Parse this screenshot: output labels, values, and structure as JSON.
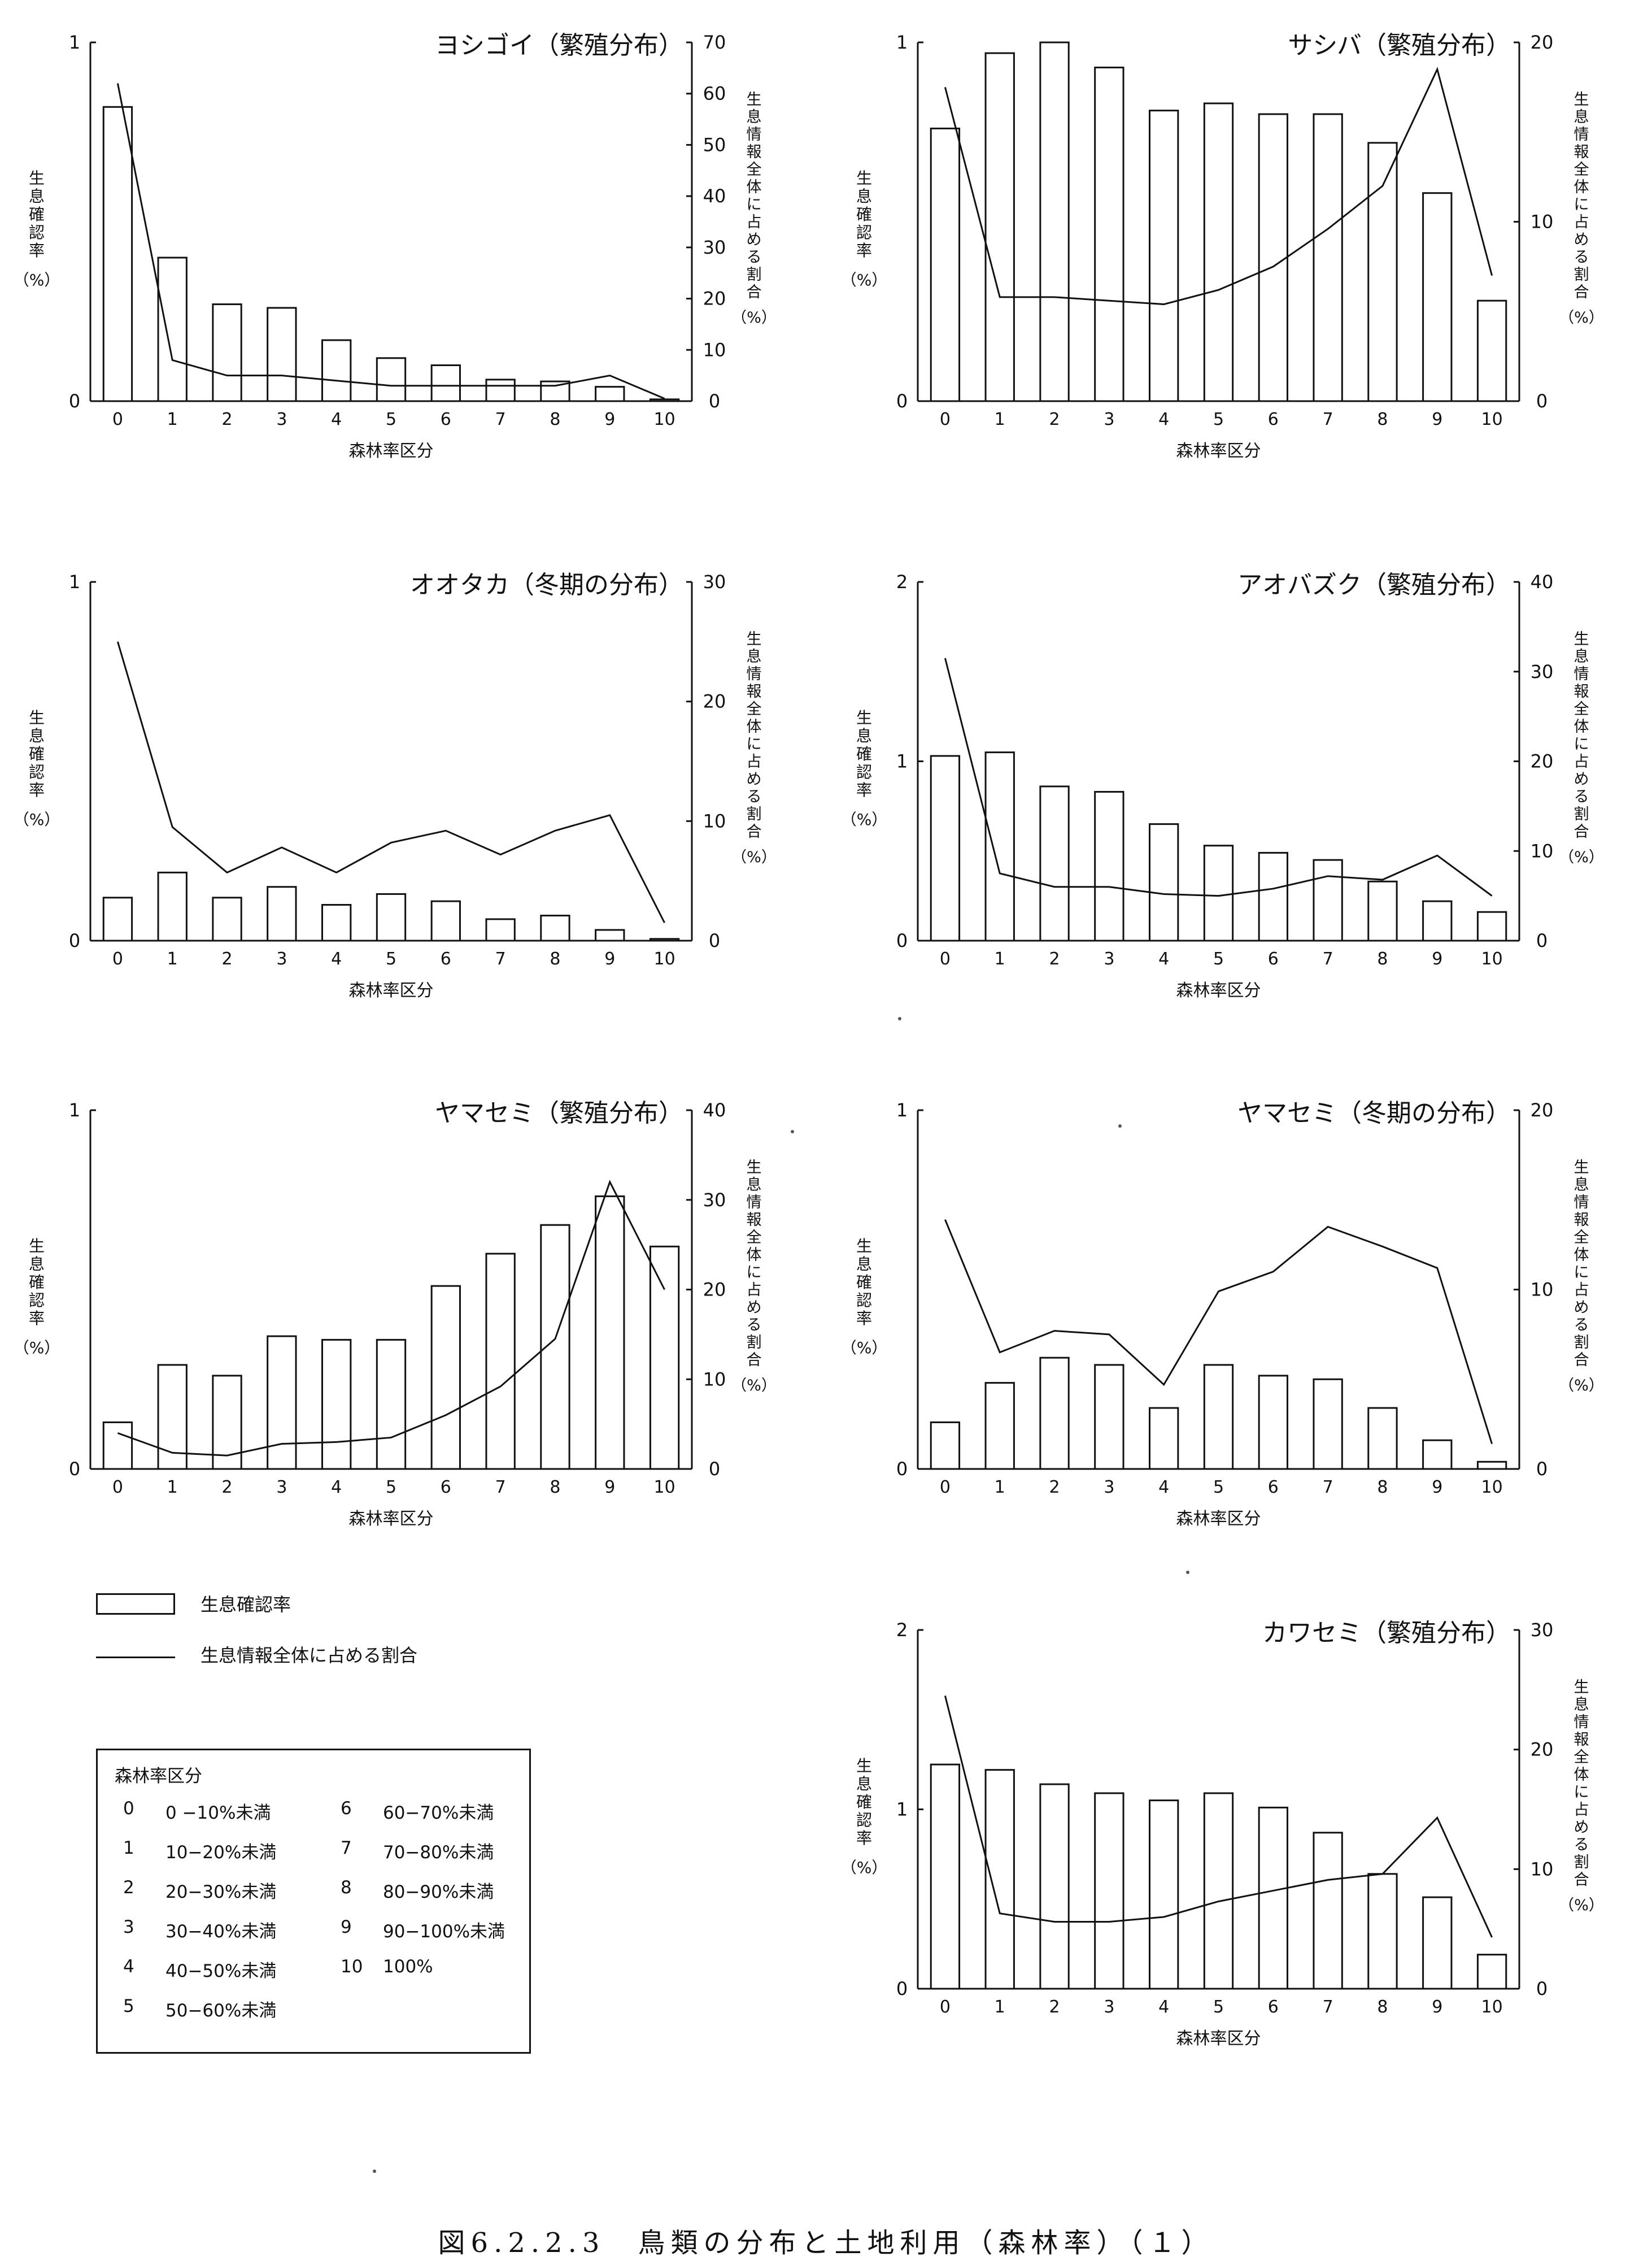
{
  "legend": {
    "bar_label": "生息確認率",
    "line_label": "生息情報全体に占める割合"
  },
  "key": {
    "title": "森林率区分",
    "items": [
      {
        "code": "0",
        "range": "0 −10%未満"
      },
      {
        "code": "1",
        "range": "10−20%未満"
      },
      {
        "code": "2",
        "range": "20−30%未満"
      },
      {
        "code": "3",
        "range": "30−40%未満"
      },
      {
        "code": "4",
        "range": "40−50%未満"
      },
      {
        "code": "5",
        "range": "50−60%未満"
      },
      {
        "code": "6",
        "range": "60−70%未満"
      },
      {
        "code": "7",
        "range": "70−80%未満"
      },
      {
        "code": "8",
        "range": "80−90%未満"
      },
      {
        "code": "9",
        "range": "90−100%未満"
      },
      {
        "code": "10",
        "range": "100%"
      }
    ]
  },
  "caption": "図6.2.2.3　鳥類の分布と土地利用（森林率）（１）",
  "chart_data": [
    {
      "type": "bar",
      "title": "ヨシゴイ（繁殖分布）",
      "xlabel": "森林率区分",
      "ylabel": "生息確認率（%）",
      "y2label": "生息情報全体に占める割合（%）",
      "categories": [
        "0",
        "1",
        "2",
        "3",
        "4",
        "5",
        "6",
        "7",
        "8",
        "9",
        "10"
      ],
      "ylim": [
        0,
        1
      ],
      "yticks": [
        "0",
        "1"
      ],
      "y2lim": [
        0,
        70
      ],
      "y2ticks": [
        "0",
        "10",
        "20",
        "30",
        "40",
        "50",
        "60",
        "70"
      ],
      "series": [
        {
          "name": "生息確認率",
          "kind": "bar",
          "values": [
            0.82,
            0.4,
            0.27,
            0.26,
            0.17,
            0.12,
            0.1,
            0.06,
            0.055,
            0.04,
            0.005
          ]
        },
        {
          "name": "生息情報全体に占める割合",
          "kind": "line",
          "values": [
            62,
            8,
            5,
            5,
            4,
            3,
            3,
            3,
            3,
            5,
            0.5
          ]
        }
      ]
    },
    {
      "type": "bar",
      "title": "サシバ（繁殖分布）",
      "xlabel": "森林率区分",
      "ylabel": "生息確認率（%）",
      "y2label": "生息情報全体に占める割合（%）",
      "categories": [
        "0",
        "1",
        "2",
        "3",
        "4",
        "5",
        "6",
        "7",
        "8",
        "9",
        "10"
      ],
      "ylim": [
        0,
        1
      ],
      "yticks": [
        "0",
        "1"
      ],
      "y2lim": [
        0,
        20
      ],
      "y2ticks": [
        "0",
        "10",
        "20"
      ],
      "series": [
        {
          "name": "生息確認率",
          "kind": "bar",
          "values": [
            0.76,
            0.97,
            1.0,
            0.93,
            0.81,
            0.83,
            0.8,
            0.8,
            0.72,
            0.58,
            0.28
          ]
        },
        {
          "name": "生息情報全体に占める割合",
          "kind": "line",
          "values": [
            17.5,
            5.8,
            5.8,
            5.6,
            5.4,
            6.2,
            7.5,
            9.6,
            12,
            18.5,
            7
          ]
        }
      ]
    },
    {
      "type": "bar",
      "title": "オオタカ（冬期の分布）",
      "xlabel": "森林率区分",
      "ylabel": "生息確認率（%）",
      "y2label": "生息情報全体に占める割合（%）",
      "categories": [
        "0",
        "1",
        "2",
        "3",
        "4",
        "5",
        "6",
        "7",
        "8",
        "9",
        "10"
      ],
      "ylim": [
        0,
        1
      ],
      "yticks": [
        "0",
        "1"
      ],
      "y2lim": [
        0,
        30
      ],
      "y2ticks": [
        "0",
        "10",
        "20",
        "30"
      ],
      "series": [
        {
          "name": "生息確認率",
          "kind": "bar",
          "values": [
            0.12,
            0.19,
            0.12,
            0.15,
            0.1,
            0.13,
            0.11,
            0.06,
            0.07,
            0.03,
            0.005
          ]
        },
        {
          "name": "生息情報全体に占める割合",
          "kind": "line",
          "values": [
            25,
            9.5,
            5.7,
            7.8,
            5.7,
            8.2,
            9.2,
            7.2,
            9.2,
            10.5,
            1.5
          ]
        }
      ]
    },
    {
      "type": "bar",
      "title": "アオバズク（繁殖分布）",
      "xlabel": "森林率区分",
      "ylabel": "生息確認率（%）",
      "y2label": "生息情報全体に占める割合（%）",
      "categories": [
        "0",
        "1",
        "2",
        "3",
        "4",
        "5",
        "6",
        "7",
        "8",
        "9",
        "10"
      ],
      "ylim": [
        0,
        2
      ],
      "yticks": [
        "0",
        "1",
        "2"
      ],
      "y2lim": [
        0,
        40
      ],
      "y2ticks": [
        "0",
        "10",
        "20",
        "30",
        "40"
      ],
      "series": [
        {
          "name": "生息確認率",
          "kind": "bar",
          "values": [
            1.03,
            1.05,
            0.86,
            0.83,
            0.65,
            0.53,
            0.49,
            0.45,
            0.33,
            0.22,
            0.16
          ]
        },
        {
          "name": "生息情報全体に占める割合",
          "kind": "line",
          "values": [
            31.5,
            7.5,
            6,
            6,
            5.2,
            5,
            5.8,
            7.2,
            6.8,
            9.5,
            5
          ]
        }
      ]
    },
    {
      "type": "bar",
      "title": "ヤマセミ（繁殖分布）",
      "xlabel": "森林率区分",
      "ylabel": "生息確認率（%）",
      "y2label": "生息情報全体に占める割合（%）",
      "categories": [
        "0",
        "1",
        "2",
        "3",
        "4",
        "5",
        "6",
        "7",
        "8",
        "9",
        "10"
      ],
      "ylim": [
        0,
        1
      ],
      "yticks": [
        "0",
        "1"
      ],
      "y2lim": [
        0,
        40
      ],
      "y2ticks": [
        "0",
        "10",
        "20",
        "30",
        "40"
      ],
      "series": [
        {
          "name": "生息確認率",
          "kind": "bar",
          "values": [
            0.13,
            0.29,
            0.26,
            0.37,
            0.36,
            0.36,
            0.51,
            0.6,
            0.68,
            0.76,
            0.62
          ]
        },
        {
          "name": "生息情報全体に占める割合",
          "kind": "line",
          "values": [
            4,
            1.8,
            1.5,
            2.8,
            3,
            3.5,
            6,
            9.2,
            14.5,
            32,
            20
          ]
        }
      ]
    },
    {
      "type": "bar",
      "title": "ヤマセミ（冬期の分布）",
      "xlabel": "森林率区分",
      "ylabel": "生息確認率（%）",
      "y2label": "生息情報全体に占める割合（%）",
      "categories": [
        "0",
        "1",
        "2",
        "3",
        "4",
        "5",
        "6",
        "7",
        "8",
        "9",
        "10"
      ],
      "ylim": [
        0,
        1
      ],
      "yticks": [
        "0",
        "1"
      ],
      "y2lim": [
        0,
        20
      ],
      "y2ticks": [
        "0",
        "10",
        "20"
      ],
      "series": [
        {
          "name": "生息確認率",
          "kind": "bar",
          "values": [
            0.13,
            0.24,
            0.31,
            0.29,
            0.17,
            0.29,
            0.26,
            0.25,
            0.17,
            0.08,
            0.02
          ]
        },
        {
          "name": "生息情報全体に占める割合",
          "kind": "line",
          "values": [
            13.9,
            6.5,
            7.7,
            7.5,
            4.7,
            9.9,
            11,
            13.5,
            12.4,
            11.2,
            1.4
          ]
        }
      ]
    },
    {
      "type": "bar",
      "title": "カワセミ（繁殖分布）",
      "xlabel": "森林率区分",
      "ylabel": "生息確認率（%）",
      "y2label": "生息情報全体に占める割合（%）",
      "categories": [
        "0",
        "1",
        "2",
        "3",
        "4",
        "5",
        "6",
        "7",
        "8",
        "9",
        "10"
      ],
      "ylim": [
        0,
        2
      ],
      "yticks": [
        "0",
        "1",
        "2"
      ],
      "y2lim": [
        0,
        30
      ],
      "y2ticks": [
        "0",
        "10",
        "20",
        "30"
      ],
      "series": [
        {
          "name": "生息確認率",
          "kind": "bar",
          "values": [
            1.25,
            1.22,
            1.14,
            1.09,
            1.05,
            1.09,
            1.01,
            0.87,
            0.64,
            0.51,
            0.19
          ]
        },
        {
          "name": "生息情報全体に占める割合",
          "kind": "line",
          "values": [
            24.5,
            6.3,
            5.6,
            5.6,
            6,
            7.3,
            8.2,
            9.1,
            9.6,
            14.3,
            4.3
          ]
        }
      ]
    }
  ]
}
